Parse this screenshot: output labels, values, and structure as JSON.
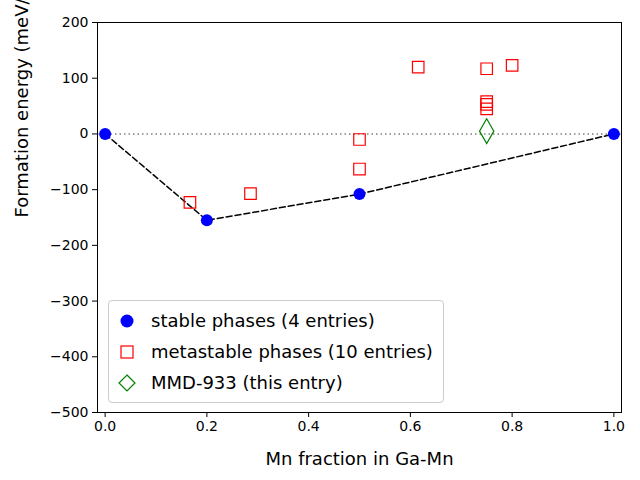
{
  "chart_data": {
    "type": "scatter",
    "xlabel": "Mn fraction in Ga-Mn",
    "ylabel": "Formation energy (meV/atom)",
    "xlim": [
      -0.015,
      1.015
    ],
    "ylim": [
      -500,
      200
    ],
    "xticks": [
      {
        "value": 0,
        "label": "0.0"
      },
      {
        "value": 0.2,
        "label": "0.2"
      },
      {
        "value": 0.4,
        "label": "0.4"
      },
      {
        "value": 0.6,
        "label": "0.6"
      },
      {
        "value": 0.8,
        "label": "0.8"
      },
      {
        "value": 1,
        "label": "1.0"
      }
    ],
    "yticks": [
      {
        "value": -500,
        "label": "−500"
      },
      {
        "value": -400,
        "label": "−400"
      },
      {
        "value": -300,
        "label": "−300"
      },
      {
        "value": -200,
        "label": "−200"
      },
      {
        "value": -100,
        "label": "−100"
      },
      0,
      100,
      200
    ],
    "hline": 0,
    "legend": "lower left",
    "series": [
      {
        "type": "line",
        "color": "#000000",
        "line_style": "dashed",
        "x": [
          0,
          0.2,
          0.5,
          1
        ],
        "values": [
          0,
          -155,
          -108,
          0
        ]
      },
      {
        "name": "stable phases (4 entries)",
        "type": "scatter",
        "color": "#0000ff",
        "marker": "circle",
        "x": [
          0,
          0.2,
          0.5,
          1
        ],
        "values": [
          0,
          -155,
          -108,
          0
        ]
      },
      {
        "name": "metastable phases (10 entries)",
        "type": "scatter",
        "color": "#ff0000",
        "marker": "open square",
        "x": [
          0.1667,
          0.2857,
          0.5,
          0.5,
          0.6154,
          0.75,
          0.75,
          0.75,
          0.75,
          0.8
        ],
        "values": [
          -123,
          -107,
          -10,
          -63,
          120,
          117,
          58,
          53,
          45,
          123
        ]
      },
      {
        "name": "MMD-933 (this entry)",
        "type": "scatter",
        "color": "#008000",
        "marker": "open diamond",
        "x": [
          0.75
        ],
        "values": [
          5
        ]
      }
    ]
  }
}
